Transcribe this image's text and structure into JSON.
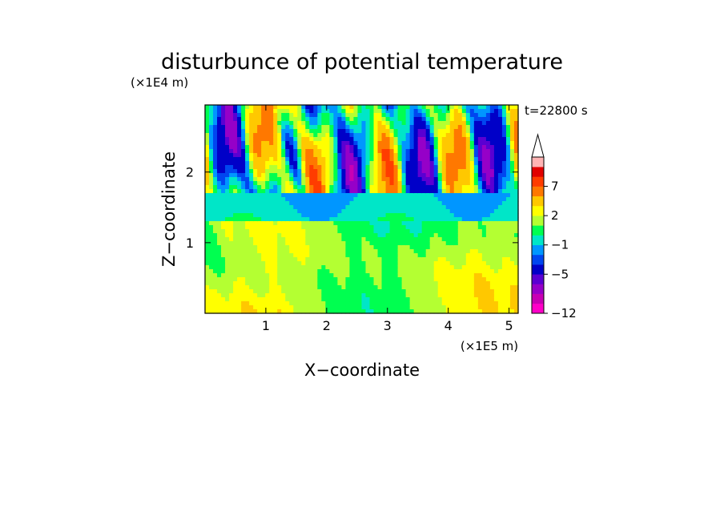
{
  "chart_data": {
    "type": "heatmap",
    "title": "disturbunce of potential temperature",
    "time_label": "t=22800 s",
    "xlabel": "X−coordinate",
    "ylabel": "Z−coordinate",
    "x_unit": "(×1E5 m)",
    "y_unit": "(×1E4 m)",
    "xlim": [
      0,
      5.15
    ],
    "ylim": [
      0,
      2.95
    ],
    "x_ticks": [
      1,
      2,
      3,
      4,
      5
    ],
    "x_tick_labels": [
      "1",
      "2",
      "3",
      "4",
      "5"
    ],
    "y_ticks": [
      1,
      2
    ],
    "y_tick_labels": [
      "1",
      "2"
    ],
    "colorbar": {
      "levels": [
        -12,
        -10,
        -8,
        -6,
        -5,
        -3,
        -2,
        -1,
        0,
        1,
        2,
        3,
        5,
        7,
        9,
        11
      ],
      "colors": [
        "#ff00c8",
        "#c800b4",
        "#9600c8",
        "#5a00d2",
        "#0000c8",
        "#0046f0",
        "#0096ff",
        "#00e6c8",
        "#00ff50",
        "#b4ff32",
        "#ffff00",
        "#ffc800",
        "#ff7800",
        "#ff3c00",
        "#e10000",
        "#ffb4b4"
      ],
      "tick_values": [
        7,
        2,
        -1,
        -5,
        -12
      ],
      "tick_labels": [
        "7",
        "2",
        "−1",
        "−5",
        "−12"
      ],
      "extend": "max"
    }
  }
}
